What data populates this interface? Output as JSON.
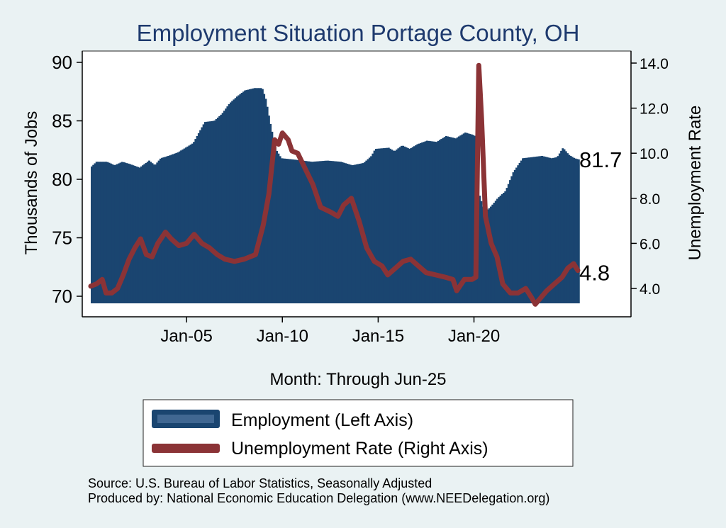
{
  "chart_data": {
    "type": "area+line (dual axis)",
    "title": "Employment Situation Portage  County, OH",
    "xlabel": "Month: Through Jun-25",
    "ylabel_left": "Thousands of Jobs",
    "ylabel_right": "Unemployment Rate",
    "x_ticks": [
      "Jan-05",
      "Jan-10",
      "Jan-15",
      "Jan-20"
    ],
    "x_range": [
      2000.0,
      2025.42
    ],
    "y_left_ticks": [
      "70",
      "75",
      "80",
      "85",
      "90"
    ],
    "y_left_range": [
      69.2,
      90.5
    ],
    "y_right_ticks": [
      "4.0",
      "6.0",
      "8.0",
      "10.0",
      "12.0",
      "14.0"
    ],
    "y_right_range": [
      3.2,
      14.1
    ],
    "series": [
      {
        "name": "Employment (Left Axis)",
        "axis": "left",
        "style": "area",
        "color": "#1a4570",
        "points": [
          [
            2000.0,
            81.1
          ],
          [
            2000.25,
            81.5
          ],
          [
            2000.8,
            81.5
          ],
          [
            2001.2,
            81.2
          ],
          [
            2001.6,
            81.5
          ],
          [
            2002.0,
            81.3
          ],
          [
            2002.5,
            81.0
          ],
          [
            2003.0,
            81.6
          ],
          [
            2003.3,
            81.2
          ],
          [
            2003.6,
            81.8
          ],
          [
            2004.0,
            82.0
          ],
          [
            2004.5,
            82.3
          ],
          [
            2004.9,
            82.7
          ],
          [
            2005.3,
            83.1
          ],
          [
            2005.6,
            84.0
          ],
          [
            2005.9,
            84.9
          ],
          [
            2006.4,
            85.0
          ],
          [
            2006.8,
            85.6
          ],
          [
            2007.2,
            86.5
          ],
          [
            2007.6,
            87.1
          ],
          [
            2008.0,
            87.6
          ],
          [
            2008.5,
            87.8
          ],
          [
            2008.9,
            87.8
          ],
          [
            2009.1,
            86.8
          ],
          [
            2009.3,
            85.0
          ],
          [
            2009.6,
            82.6
          ],
          [
            2009.9,
            81.8
          ],
          [
            2010.5,
            81.7
          ],
          [
            2011.5,
            81.5
          ],
          [
            2012.3,
            81.6
          ],
          [
            2013.0,
            81.5
          ],
          [
            2013.6,
            81.2
          ],
          [
            2014.2,
            81.4
          ],
          [
            2014.6,
            82.0
          ],
          [
            2014.8,
            82.6
          ],
          [
            2015.5,
            82.7
          ],
          [
            2015.8,
            82.4
          ],
          [
            2016.2,
            82.9
          ],
          [
            2016.6,
            82.6
          ],
          [
            2017.0,
            83.0
          ],
          [
            2017.5,
            83.3
          ],
          [
            2018.0,
            83.2
          ],
          [
            2018.5,
            83.7
          ],
          [
            2019.0,
            83.5
          ],
          [
            2019.5,
            84.0
          ],
          [
            2019.9,
            83.8
          ],
          [
            2020.15,
            83.6
          ],
          [
            2020.25,
            78.6
          ],
          [
            2020.5,
            77.2
          ],
          [
            2020.8,
            77.6
          ],
          [
            2021.2,
            78.4
          ],
          [
            2021.6,
            79.0
          ],
          [
            2022.0,
            80.6
          ],
          [
            2022.5,
            81.8
          ],
          [
            2023.0,
            81.9
          ],
          [
            2023.5,
            82.0
          ],
          [
            2024.0,
            81.8
          ],
          [
            2024.3,
            81.9
          ],
          [
            2024.6,
            82.7
          ],
          [
            2024.9,
            82.1
          ],
          [
            2025.2,
            81.8
          ],
          [
            2025.42,
            81.7
          ]
        ],
        "last_value_label": "81.7"
      },
      {
        "name": "Unemployment Rate (Right Axis)",
        "axis": "right",
        "style": "line",
        "color": "#8b3336",
        "points": [
          [
            2000.0,
            4.1
          ],
          [
            2000.3,
            4.2
          ],
          [
            2000.6,
            4.4
          ],
          [
            2000.8,
            3.8
          ],
          [
            2001.1,
            3.8
          ],
          [
            2001.4,
            4.0
          ],
          [
            2001.7,
            4.6
          ],
          [
            2002.0,
            5.3
          ],
          [
            2002.3,
            5.8
          ],
          [
            2002.6,
            6.2
          ],
          [
            2002.9,
            5.5
          ],
          [
            2003.2,
            5.4
          ],
          [
            2003.5,
            6.0
          ],
          [
            2003.9,
            6.5
          ],
          [
            2004.2,
            6.2
          ],
          [
            2004.6,
            5.9
          ],
          [
            2005.0,
            6.0
          ],
          [
            2005.4,
            6.4
          ],
          [
            2005.8,
            6.0
          ],
          [
            2006.2,
            5.8
          ],
          [
            2006.6,
            5.5
          ],
          [
            2007.0,
            5.3
          ],
          [
            2007.5,
            5.2
          ],
          [
            2008.0,
            5.3
          ],
          [
            2008.6,
            5.5
          ],
          [
            2009.0,
            6.8
          ],
          [
            2009.3,
            8.2
          ],
          [
            2009.6,
            10.6
          ],
          [
            2009.8,
            10.4
          ],
          [
            2010.0,
            10.9
          ],
          [
            2010.3,
            10.6
          ],
          [
            2010.5,
            10.1
          ],
          [
            2010.8,
            10.0
          ],
          [
            2011.2,
            9.3
          ],
          [
            2011.6,
            8.6
          ],
          [
            2012.0,
            7.6
          ],
          [
            2012.5,
            7.4
          ],
          [
            2012.9,
            7.2
          ],
          [
            2013.2,
            7.7
          ],
          [
            2013.6,
            8.0
          ],
          [
            2014.0,
            7.0
          ],
          [
            2014.4,
            5.8
          ],
          [
            2014.8,
            5.2
          ],
          [
            2015.2,
            5.0
          ],
          [
            2015.5,
            4.6
          ],
          [
            2015.9,
            4.9
          ],
          [
            2016.3,
            5.2
          ],
          [
            2016.7,
            5.3
          ],
          [
            2017.1,
            5.0
          ],
          [
            2017.5,
            4.7
          ],
          [
            2018.0,
            4.6
          ],
          [
            2018.5,
            4.5
          ],
          [
            2018.9,
            4.4
          ],
          [
            2019.1,
            3.9
          ],
          [
            2019.5,
            4.4
          ],
          [
            2019.9,
            4.4
          ],
          [
            2020.1,
            4.5
          ],
          [
            2020.25,
            13.9
          ],
          [
            2020.4,
            11.5
          ],
          [
            2020.6,
            7.2
          ],
          [
            2020.9,
            6.0
          ],
          [
            2021.2,
            5.4
          ],
          [
            2021.5,
            4.2
          ],
          [
            2021.9,
            3.8
          ],
          [
            2022.3,
            3.8
          ],
          [
            2022.7,
            4.0
          ],
          [
            2023.0,
            3.6
          ],
          [
            2023.2,
            3.3
          ],
          [
            2023.5,
            3.6
          ],
          [
            2023.8,
            3.9
          ],
          [
            2024.2,
            4.2
          ],
          [
            2024.6,
            4.5
          ],
          [
            2024.9,
            4.9
          ],
          [
            2025.2,
            5.1
          ],
          [
            2025.42,
            4.8
          ]
        ],
        "last_value_label": "4.8"
      }
    ],
    "legend_position": "bottom"
  },
  "footer": {
    "source": "Source: U.S. Bureau of Labor Statistics, Seasonally Adjusted",
    "producer": "Produced by: National Economic Education Delegation (www.NEEDelegation.org)"
  },
  "colors": {
    "background": "#eaf2f3",
    "plot_background": "#ffffff",
    "title": "#1e3a6e",
    "employment": "#1a4570",
    "unemployment": "#8b3336"
  }
}
